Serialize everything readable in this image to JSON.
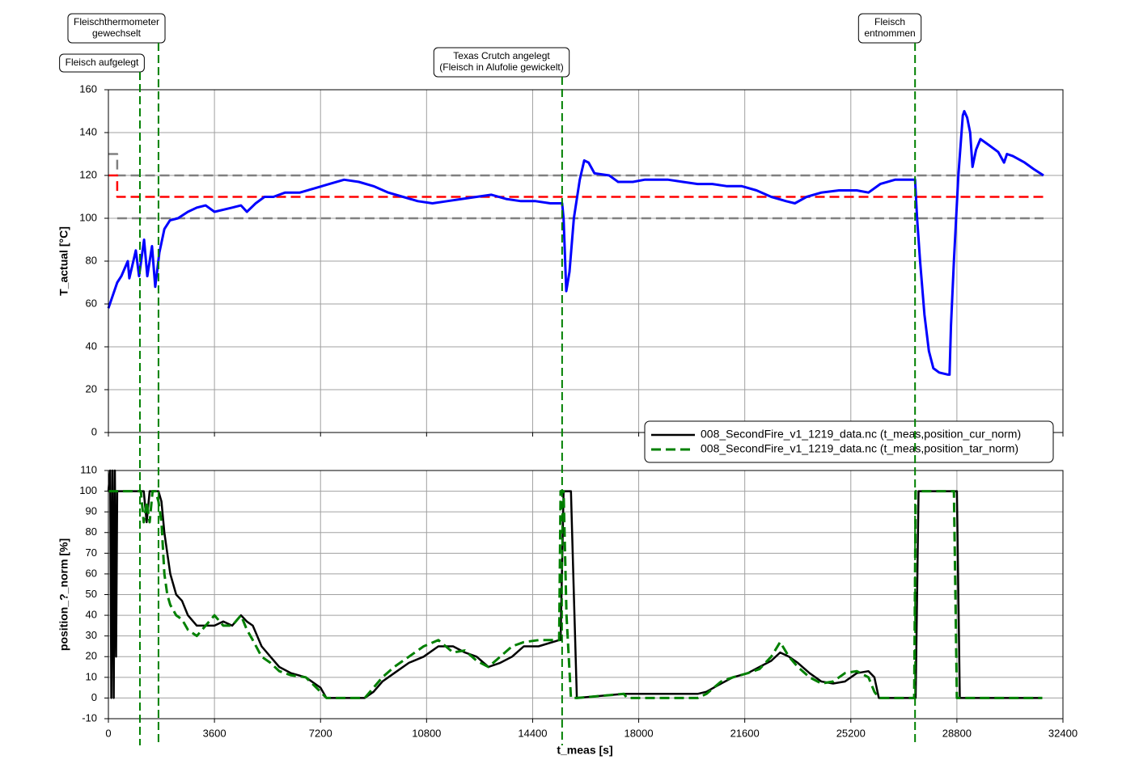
{
  "chart_data": [
    {
      "type": "line",
      "ylabel": "T_actual [°C]",
      "xlim": [
        0,
        32400
      ],
      "xticks": [
        0,
        3600,
        7200,
        10800,
        14400,
        18000,
        21600,
        25200,
        28800,
        32400
      ],
      "show_xtick_labels": false,
      "ylim": [
        0,
        160
      ],
      "yticks": [
        0,
        20,
        40,
        60,
        80,
        100,
        120,
        140,
        160
      ],
      "grid": true,
      "series": [
        {
          "color": "#808080",
          "dashed": true,
          "width": 2.5,
          "x": [
            0,
            300,
            300,
            31740
          ],
          "values": [
            130,
            130,
            120,
            120
          ]
        },
        {
          "color": "#808080",
          "dashed": true,
          "width": 2.5,
          "x": [
            300,
            31740
          ],
          "values": [
            100,
            100
          ]
        },
        {
          "color": "#ff0000",
          "dashed": true,
          "width": 2.5,
          "x": [
            0,
            300,
            300,
            31740
          ],
          "values": [
            120,
            120,
            110,
            110
          ]
        },
        {
          "color": "#0000ff",
          "dashed": false,
          "width": 3,
          "x": [
            0,
            300,
            440,
            660,
            710,
            930,
            1040,
            1210,
            1320,
            1480,
            1590,
            1730,
            1900,
            2090,
            2360,
            2700,
            3000,
            3300,
            3600,
            3900,
            4200,
            4500,
            4700,
            5000,
            5300,
            5600,
            6000,
            6500,
            7000,
            7500,
            8000,
            8500,
            9000,
            9500,
            10000,
            10500,
            11000,
            11500,
            12000,
            12500,
            13000,
            13500,
            14000,
            14500,
            15000,
            15400,
            15450,
            15540,
            15650,
            15800,
            16000,
            16150,
            16300,
            16500,
            17000,
            17300,
            17800,
            18200,
            19000,
            19500,
            20000,
            20500,
            21000,
            21500,
            22000,
            22500,
            23000,
            23300,
            23700,
            24200,
            24800,
            25400,
            25800,
            26200,
            26700,
            27380,
            27450,
            27550,
            27700,
            27850,
            28000,
            28200,
            28500,
            28550,
            28600,
            28700,
            28850,
            29000,
            29050,
            29150,
            29250,
            29330,
            29450,
            29600,
            29900,
            30200,
            30400,
            30500,
            30700,
            31100,
            31400,
            31740
          ],
          "values": [
            58,
            70,
            73,
            80,
            72,
            85,
            73,
            90,
            73,
            87,
            68,
            84,
            95,
            99,
            100,
            103,
            105,
            106,
            103,
            104,
            105,
            106,
            103,
            107,
            110,
            110,
            112,
            112,
            114,
            116,
            118,
            117,
            115,
            112,
            110,
            108,
            107,
            108,
            109,
            110,
            111,
            109,
            108,
            108,
            107,
            107,
            100,
            66,
            75,
            100,
            118,
            127,
            126,
            121,
            120,
            117,
            117,
            118,
            118,
            117,
            116,
            116,
            115,
            115,
            113,
            110,
            108,
            107,
            110,
            112,
            113,
            113,
            112,
            116,
            118,
            118,
            100,
            80,
            55,
            38,
            30,
            28,
            27,
            27,
            50,
            80,
            120,
            148,
            150,
            147,
            140,
            124,
            132,
            137,
            134,
            131,
            126,
            130,
            129,
            126,
            123,
            120
          ]
        }
      ],
      "annotations": [
        {
          "x": 1070,
          "text": [
            "Fleisch aufgelegt"
          ]
        },
        {
          "x": 1700,
          "text": [
            "Fleischthermometer",
            "gewechselt"
          ]
        },
        {
          "x": 15400,
          "text": [
            "Texas Crutch angelegt",
            "(Fleisch in Alufolie gewickelt)"
          ]
        },
        {
          "x": 27380,
          "text": [
            "Fleisch",
            "entnommen"
          ]
        }
      ]
    },
    {
      "type": "line",
      "ylabel": "position_?_norm [%]",
      "xlabel": "t_meas [s]",
      "xlim": [
        0,
        32400
      ],
      "xticks": [
        0,
        3600,
        7200,
        10800,
        14400,
        18000,
        21600,
        25200,
        28800,
        32400
      ],
      "show_xtick_labels": true,
      "ylim": [
        -10,
        110
      ],
      "yticks": [
        -10,
        0,
        10,
        20,
        30,
        40,
        50,
        60,
        70,
        80,
        90,
        100,
        110
      ],
      "grid": true,
      "legend": "upper right",
      "x": [
        0,
        60,
        100,
        140,
        180,
        220,
        260,
        300,
        1100,
        1200,
        1300,
        1400,
        1500,
        1600,
        1700,
        1800,
        1900,
        2000,
        2100,
        2300,
        2500,
        2700,
        3000,
        3300,
        3600,
        3900,
        4200,
        4500,
        4700,
        4900,
        5200,
        5500,
        5800,
        6200,
        6700,
        7200,
        7400,
        8700,
        9000,
        9300,
        9700,
        10200,
        10700,
        11200,
        11700,
        12100,
        12500,
        12900,
        13300,
        13700,
        14100,
        14600,
        15300,
        15350,
        15450,
        15550,
        15700,
        15800,
        15900,
        17500,
        17600,
        18000,
        19000,
        20000,
        20300,
        20800,
        21200,
        21700,
        22100,
        22500,
        22800,
        23100,
        23400,
        23800,
        24200,
        24600,
        25000,
        25400,
        25800,
        26000,
        26150,
        27350,
        27400,
        27500,
        28700,
        28800,
        28900,
        31700
      ],
      "series": [
        {
          "name": "008_SecondFire_v1_1219_data.nc (t_meas,position_cur_norm)",
          "color": "#000000",
          "dashed": false,
          "width": 2.5,
          "values": [
            100,
            110,
            0,
            110,
            0,
            110,
            20,
            100,
            100,
            100,
            85,
            100,
            100,
            100,
            100,
            95,
            80,
            70,
            60,
            50,
            47,
            40,
            35,
            35,
            35,
            37,
            35,
            40,
            37,
            35,
            25,
            20,
            15,
            12,
            10,
            5,
            0,
            0,
            3,
            8,
            12,
            17,
            20,
            25,
            25,
            22,
            20,
            15,
            17,
            20,
            25,
            25,
            28,
            28,
            100,
            100,
            100,
            50,
            0,
            2,
            2,
            2,
            2,
            2,
            3,
            7,
            10,
            12,
            15,
            18,
            22,
            20,
            17,
            12,
            8,
            7,
            8,
            12,
            13,
            10,
            0,
            0,
            0,
            100,
            100,
            100,
            0,
            0
          ]
        },
        {
          "name": "008_SecondFire_v1_1219_data.nc (t_meas,position_tar_norm)",
          "color": "#008000",
          "dashed": true,
          "width": 3,
          "values": [
            100,
            100,
            100,
            100,
            100,
            100,
            100,
            100,
            100,
            85,
            95,
            85,
            100,
            100,
            95,
            85,
            60,
            50,
            45,
            40,
            38,
            33,
            30,
            35,
            40,
            35,
            35,
            40,
            33,
            28,
            20,
            17,
            13,
            11,
            10,
            3,
            0,
            0,
            5,
            10,
            15,
            20,
            25,
            28,
            22,
            23,
            18,
            15,
            20,
            25,
            27,
            28,
            28,
            100,
            100,
            40,
            0,
            0,
            0,
            2,
            0,
            0,
            0,
            0,
            2,
            8,
            10,
            12,
            14,
            20,
            27,
            20,
            15,
            10,
            7,
            8,
            12,
            13,
            10,
            3,
            0,
            0,
            100,
            100,
            100,
            0,
            0,
            0
          ]
        }
      ]
    }
  ]
}
